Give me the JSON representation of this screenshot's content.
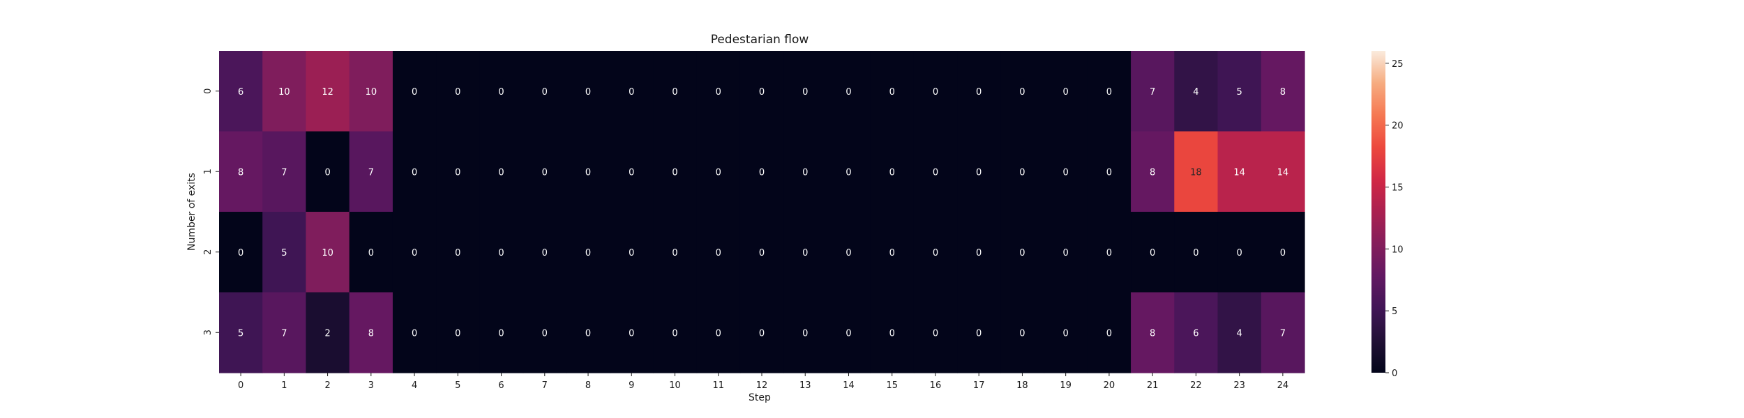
{
  "chart_data": {
    "type": "heatmap",
    "title": "Pedestarian flow",
    "xlabel": "Step",
    "ylabel": "Number of exits",
    "x_categories": [
      "0",
      "1",
      "2",
      "3",
      "4",
      "5",
      "6",
      "7",
      "8",
      "9",
      "10",
      "11",
      "12",
      "13",
      "14",
      "15",
      "16",
      "17",
      "18",
      "19",
      "20",
      "21",
      "22",
      "23",
      "24"
    ],
    "y_categories": [
      "0",
      "1",
      "2",
      "3"
    ],
    "values": [
      [
        6,
        10,
        12,
        10,
        0,
        0,
        0,
        0,
        0,
        0,
        0,
        0,
        0,
        0,
        0,
        0,
        0,
        0,
        0,
        0,
        0,
        7,
        4,
        5,
        8
      ],
      [
        8,
        7,
        0,
        7,
        0,
        0,
        0,
        0,
        0,
        0,
        0,
        0,
        0,
        0,
        0,
        0,
        0,
        0,
        0,
        0,
        0,
        8,
        18,
        14,
        14
      ],
      [
        0,
        5,
        10,
        0,
        0,
        0,
        0,
        0,
        0,
        0,
        0,
        0,
        0,
        0,
        0,
        0,
        0,
        0,
        0,
        0,
        0,
        0,
        0,
        0,
        0
      ],
      [
        5,
        7,
        2,
        8,
        0,
        0,
        0,
        0,
        0,
        0,
        0,
        0,
        0,
        0,
        0,
        0,
        0,
        0,
        0,
        0,
        0,
        8,
        6,
        4,
        7
      ]
    ],
    "colorbar": {
      "range": [
        0,
        26
      ],
      "ticks": [
        "0",
        "5",
        "10",
        "15",
        "20",
        "25"
      ],
      "colormap": "rocket"
    },
    "annotations": true,
    "grid": false
  }
}
